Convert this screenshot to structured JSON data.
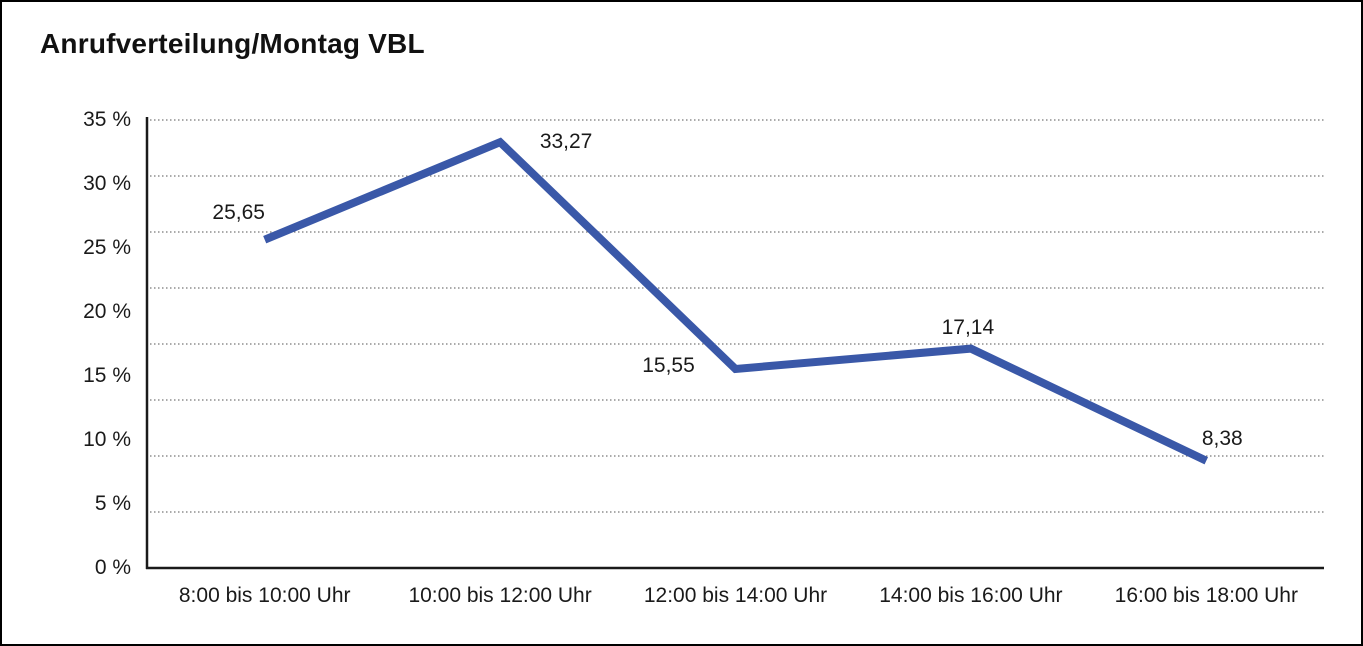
{
  "title": "Anrufverteilung/Montag VBL",
  "chart_data": {
    "type": "line",
    "title": "Anrufverteilung/Montag VBL",
    "categories": [
      "8:00 bis 10:00 Uhr",
      "10:00 bis 12:00 Uhr",
      "12:00 bis 14:00 Uhr",
      "14:00 bis 16:00 Uhr",
      "16:00 bis 18:00 Uhr"
    ],
    "values": [
      25.65,
      33.27,
      15.55,
      17.14,
      8.38
    ],
    "value_labels": [
      "25,65",
      "33,27",
      "15,55",
      "17,14",
      "8,38"
    ],
    "y_tick_labels": [
      "35 %",
      "30 %",
      "25 %",
      "20 %",
      "15 %",
      "10 %",
      "5 %",
      "0 %"
    ],
    "ylim": [
      0,
      35
    ],
    "xlabel": "",
    "ylabel": "",
    "legend": "none",
    "grid": "horizontal-dotted",
    "line_color": "#3A58A8",
    "axis_color": "#1a1a1a",
    "grid_color": "#777777"
  }
}
